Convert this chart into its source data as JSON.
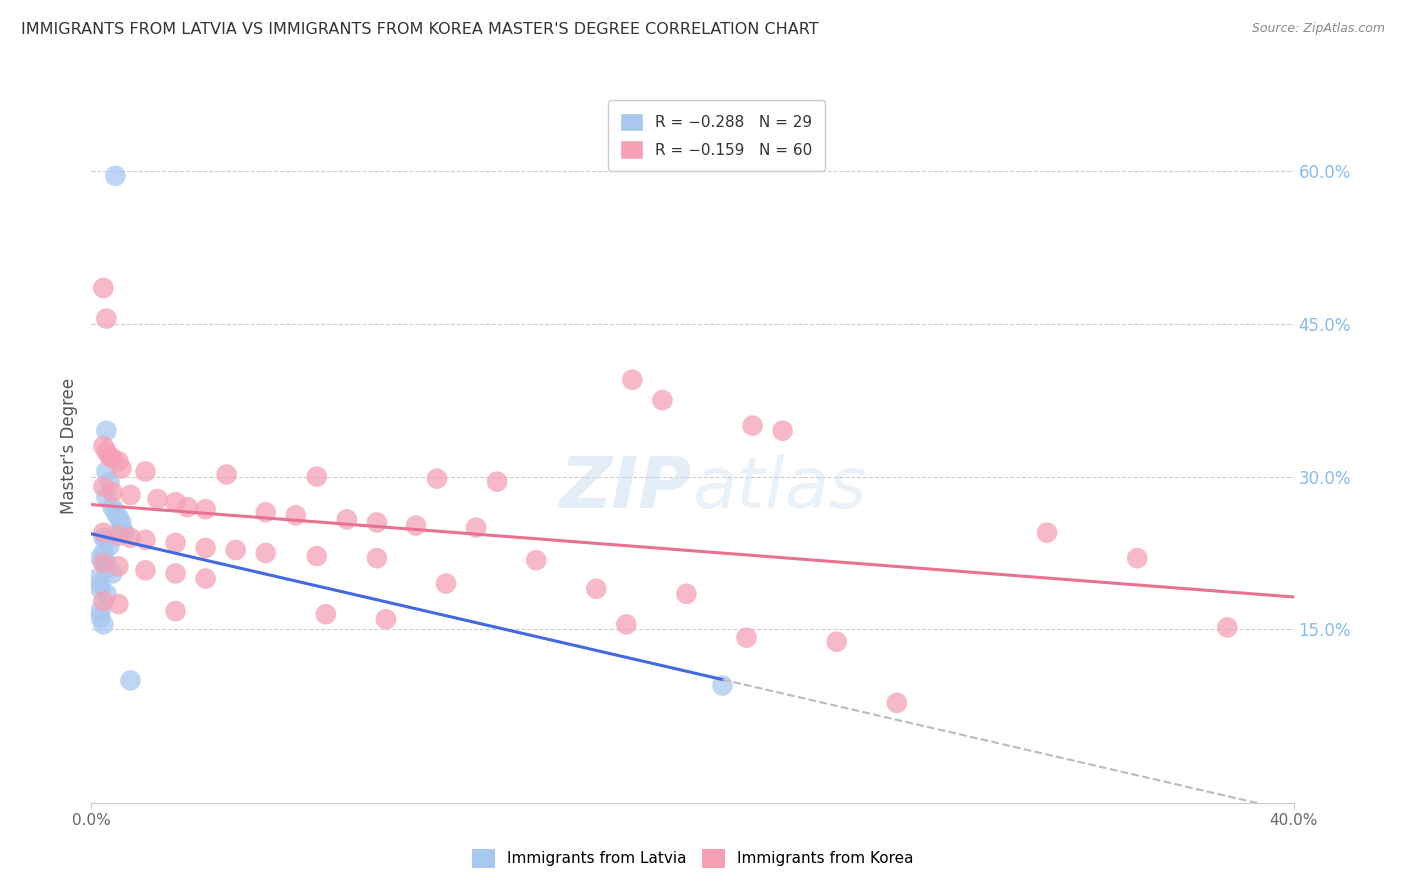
{
  "title": "IMMIGRANTS FROM LATVIA VS IMMIGRANTS FROM KOREA MASTER'S DEGREE CORRELATION CHART",
  "source": "Source: ZipAtlas.com",
  "ylabel": "Master's Degree",
  "y_tick_labels": [
    "15.0%",
    "30.0%",
    "45.0%",
    "60.0%"
  ],
  "y_tick_values": [
    0.15,
    0.3,
    0.45,
    0.6
  ],
  "x_range": [
    0.0,
    0.4
  ],
  "y_range": [
    -0.02,
    0.68
  ],
  "watermark": "ZIPatlas",
  "background_color": "#ffffff",
  "latvia_color": "#a8c8f0",
  "korea_color": "#f5a0b5",
  "latvia_line_color": "#4169e1",
  "korea_line_color": "#e87090",
  "dash_color": "#bbbbbb",
  "right_tick_color": "#88bbee",
  "latvia_scatter": [
    [
      0.008,
      0.595
    ],
    [
      0.005,
      0.345
    ],
    [
      0.005,
      0.305
    ],
    [
      0.006,
      0.295
    ],
    [
      0.005,
      0.28
    ],
    [
      0.007,
      0.27
    ],
    [
      0.008,
      0.265
    ],
    [
      0.009,
      0.26
    ],
    [
      0.01,
      0.255
    ],
    [
      0.01,
      0.25
    ],
    [
      0.011,
      0.245
    ],
    [
      0.004,
      0.24
    ],
    [
      0.005,
      0.238
    ],
    [
      0.006,
      0.232
    ],
    [
      0.004,
      0.225
    ],
    [
      0.003,
      0.22
    ],
    [
      0.004,
      0.218
    ],
    [
      0.005,
      0.215
    ],
    [
      0.005,
      0.21
    ],
    [
      0.007,
      0.205
    ],
    [
      0.002,
      0.2
    ],
    [
      0.003,
      0.195
    ],
    [
      0.003,
      0.19
    ],
    [
      0.005,
      0.185
    ],
    [
      0.003,
      0.168
    ],
    [
      0.003,
      0.162
    ],
    [
      0.004,
      0.155
    ],
    [
      0.013,
      0.1
    ],
    [
      0.21,
      0.095
    ]
  ],
  "korea_scatter": [
    [
      0.004,
      0.485
    ],
    [
      0.005,
      0.455
    ],
    [
      0.18,
      0.395
    ],
    [
      0.19,
      0.375
    ],
    [
      0.22,
      0.35
    ],
    [
      0.23,
      0.345
    ],
    [
      0.004,
      0.33
    ],
    [
      0.005,
      0.325
    ],
    [
      0.006,
      0.32
    ],
    [
      0.007,
      0.318
    ],
    [
      0.009,
      0.315
    ],
    [
      0.01,
      0.308
    ],
    [
      0.018,
      0.305
    ],
    [
      0.045,
      0.302
    ],
    [
      0.075,
      0.3
    ],
    [
      0.115,
      0.298
    ],
    [
      0.135,
      0.295
    ],
    [
      0.004,
      0.29
    ],
    [
      0.007,
      0.285
    ],
    [
      0.013,
      0.282
    ],
    [
      0.022,
      0.278
    ],
    [
      0.028,
      0.275
    ],
    [
      0.032,
      0.27
    ],
    [
      0.038,
      0.268
    ],
    [
      0.058,
      0.265
    ],
    [
      0.068,
      0.262
    ],
    [
      0.085,
      0.258
    ],
    [
      0.095,
      0.255
    ],
    [
      0.108,
      0.252
    ],
    [
      0.128,
      0.25
    ],
    [
      0.004,
      0.245
    ],
    [
      0.009,
      0.242
    ],
    [
      0.013,
      0.24
    ],
    [
      0.018,
      0.238
    ],
    [
      0.028,
      0.235
    ],
    [
      0.038,
      0.23
    ],
    [
      0.048,
      0.228
    ],
    [
      0.058,
      0.225
    ],
    [
      0.075,
      0.222
    ],
    [
      0.095,
      0.22
    ],
    [
      0.148,
      0.218
    ],
    [
      0.004,
      0.215
    ],
    [
      0.009,
      0.212
    ],
    [
      0.018,
      0.208
    ],
    [
      0.028,
      0.205
    ],
    [
      0.038,
      0.2
    ],
    [
      0.118,
      0.195
    ],
    [
      0.168,
      0.19
    ],
    [
      0.198,
      0.185
    ],
    [
      0.004,
      0.178
    ],
    [
      0.009,
      0.175
    ],
    [
      0.028,
      0.168
    ],
    [
      0.078,
      0.165
    ],
    [
      0.098,
      0.16
    ],
    [
      0.178,
      0.155
    ],
    [
      0.318,
      0.245
    ],
    [
      0.268,
      0.078
    ],
    [
      0.348,
      0.22
    ],
    [
      0.378,
      0.152
    ],
    [
      0.218,
      0.142
    ],
    [
      0.248,
      0.138
    ]
  ]
}
